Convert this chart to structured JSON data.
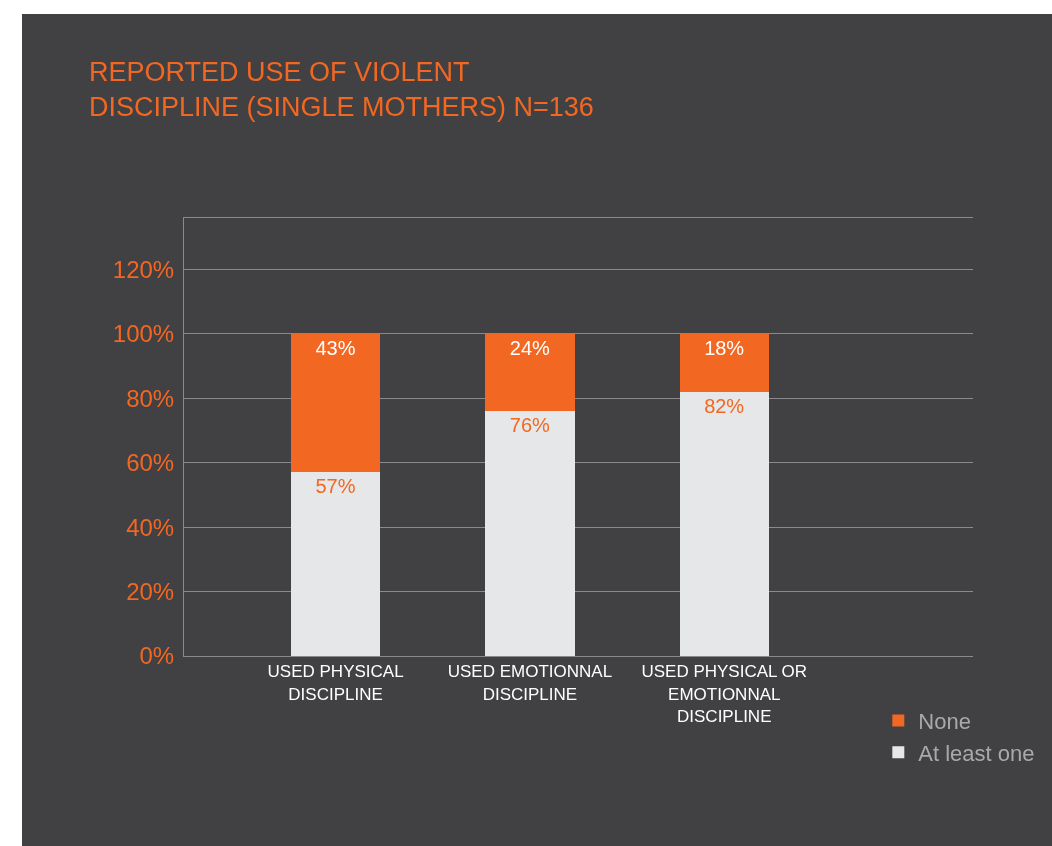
{
  "chart_data": {
    "type": "bar",
    "stacked": true,
    "title": "REPORTED USE OF VIOLENT\nDISCIPLINE (SINGLE MOTHERS) N=136",
    "categories": [
      "USED PHYSICAL\nDISCIPLINE",
      "USED EMOTIONNAL\nDISCIPLINE",
      "USED PHYSICAL OR\nEMOTIONNAL\nDISCIPLINE"
    ],
    "series": [
      {
        "name": "At least one",
        "color": "#e6e7e8",
        "values": [
          57,
          76,
          82
        ],
        "value_labels": [
          "57%",
          "76%",
          "82%"
        ]
      },
      {
        "name": "None",
        "color": "#f26722",
        "values": [
          43,
          24,
          18
        ],
        "value_labels": [
          "43%",
          "24%",
          "18%"
        ]
      }
    ],
    "ylim": [
      0,
      136
    ],
    "yticks": [
      {
        "value": 0,
        "label": "0%"
      },
      {
        "value": 20,
        "label": "20%"
      },
      {
        "value": 40,
        "label": "40%"
      },
      {
        "value": 60,
        "label": "60%"
      },
      {
        "value": 80,
        "label": "80%"
      },
      {
        "value": 100,
        "label": "100%"
      },
      {
        "value": 120,
        "label": "120%"
      }
    ],
    "grid": "y",
    "legend": "bottom right"
  }
}
